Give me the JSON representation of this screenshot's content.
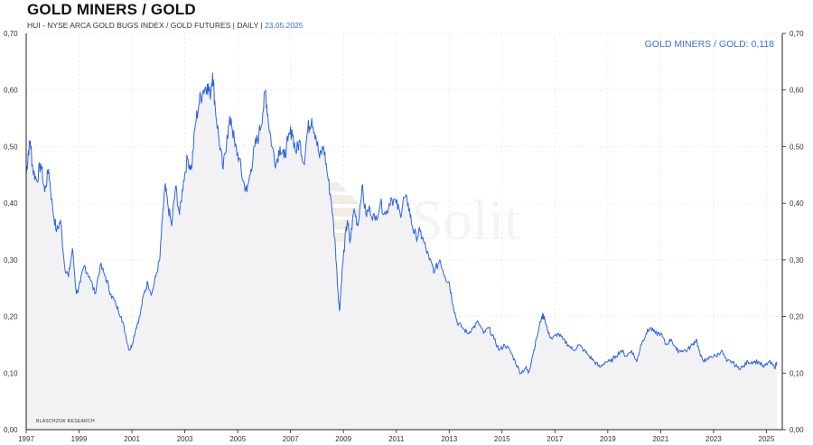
{
  "title": "GOLD MINERS / GOLD",
  "subtitle": "HUI - NYSE ARCA GOLD BUGS INDEX / GOLD FUTURES | DAILY |",
  "subtitle_date": "23.05.2025",
  "watermark": "Solit",
  "source": "BLASCHZOK RESEARCH",
  "colors": {
    "line": "#2e62e0",
    "accent": "#3a6fd8",
    "grid": "#e6e6e6"
  },
  "chart_data": {
    "type": "line",
    "title": "GOLD MINERS / GOLD",
    "readout_label": "GOLD MINERS / GOLD: 0,118",
    "xlim": [
      1997.0,
      2025.6
    ],
    "ylim": [
      0.0,
      0.7
    ],
    "grid": true,
    "x_ticks": [
      1997,
      1999,
      2001,
      2003,
      2005,
      2007,
      2009,
      2011,
      2013,
      2015,
      2017,
      2019,
      2021,
      2023,
      2025
    ],
    "x_tick_labels": [
      "1997",
      "1999",
      "2001",
      "2003",
      "2005",
      "2007",
      "2009",
      "2011",
      "2013",
      "2015",
      "2017",
      "2019",
      "2021",
      "2023",
      "2025"
    ],
    "y_ticks": [
      0.0,
      0.1,
      0.2,
      0.3,
      0.4,
      0.5,
      0.6,
      0.7
    ],
    "y_tick_labels": [
      "0,00",
      "0,10",
      "0,20",
      "0,30",
      "0,40",
      "0,50",
      "0,60",
      "0,70"
    ],
    "series": [
      {
        "values": [
          [
            1997.0,
            0.45
          ],
          [
            1997.08,
            0.49
          ],
          [
            1997.15,
            0.51
          ],
          [
            1997.25,
            0.46
          ],
          [
            1997.4,
            0.44
          ],
          [
            1997.55,
            0.47
          ],
          [
            1997.7,
            0.42
          ],
          [
            1997.85,
            0.46
          ],
          [
            1998.0,
            0.39
          ],
          [
            1998.15,
            0.35
          ],
          [
            1998.3,
            0.37
          ],
          [
            1998.45,
            0.29
          ],
          [
            1998.6,
            0.27
          ],
          [
            1998.75,
            0.32
          ],
          [
            1998.9,
            0.24
          ],
          [
            1999.05,
            0.26
          ],
          [
            1999.2,
            0.29
          ],
          [
            1999.4,
            0.27
          ],
          [
            1999.6,
            0.24
          ],
          [
            1999.8,
            0.29
          ],
          [
            2000.0,
            0.27
          ],
          [
            2000.2,
            0.24
          ],
          [
            2000.4,
            0.22
          ],
          [
            2000.6,
            0.2
          ],
          [
            2000.75,
            0.17
          ],
          [
            2000.9,
            0.14
          ],
          [
            2001.0,
            0.15
          ],
          [
            2001.15,
            0.18
          ],
          [
            2001.3,
            0.2
          ],
          [
            2001.45,
            0.24
          ],
          [
            2001.6,
            0.26
          ],
          [
            2001.75,
            0.24
          ],
          [
            2001.9,
            0.27
          ],
          [
            2002.05,
            0.3
          ],
          [
            2002.15,
            0.37
          ],
          [
            2002.25,
            0.43
          ],
          [
            2002.35,
            0.4
          ],
          [
            2002.5,
            0.36
          ],
          [
            2002.65,
            0.43
          ],
          [
            2002.8,
            0.38
          ],
          [
            2002.95,
            0.44
          ],
          [
            2003.1,
            0.48
          ],
          [
            2003.25,
            0.46
          ],
          [
            2003.4,
            0.54
          ],
          [
            2003.55,
            0.58
          ],
          [
            2003.7,
            0.6
          ],
          [
            2003.85,
            0.61
          ],
          [
            2003.95,
            0.59
          ],
          [
            2004.05,
            0.63
          ],
          [
            2004.15,
            0.57
          ],
          [
            2004.3,
            0.51
          ],
          [
            2004.45,
            0.46
          ],
          [
            2004.6,
            0.52
          ],
          [
            2004.75,
            0.55
          ],
          [
            2004.9,
            0.5
          ],
          [
            2005.05,
            0.48
          ],
          [
            2005.2,
            0.44
          ],
          [
            2005.35,
            0.42
          ],
          [
            2005.5,
            0.46
          ],
          [
            2005.65,
            0.5
          ],
          [
            2005.8,
            0.52
          ],
          [
            2005.95,
            0.56
          ],
          [
            2006.05,
            0.6
          ],
          [
            2006.15,
            0.55
          ],
          [
            2006.3,
            0.5
          ],
          [
            2006.45,
            0.47
          ],
          [
            2006.6,
            0.5
          ],
          [
            2006.75,
            0.48
          ],
          [
            2006.9,
            0.51
          ],
          [
            2007.05,
            0.53
          ],
          [
            2007.2,
            0.49
          ],
          [
            2007.35,
            0.51
          ],
          [
            2007.5,
            0.47
          ],
          [
            2007.65,
            0.53
          ],
          [
            2007.8,
            0.55
          ],
          [
            2007.95,
            0.52
          ],
          [
            2008.1,
            0.48
          ],
          [
            2008.25,
            0.5
          ],
          [
            2008.4,
            0.45
          ],
          [
            2008.55,
            0.4
          ],
          [
            2008.7,
            0.32
          ],
          [
            2008.8,
            0.24
          ],
          [
            2008.85,
            0.21
          ],
          [
            2008.95,
            0.28
          ],
          [
            2009.05,
            0.33
          ],
          [
            2009.15,
            0.37
          ],
          [
            2009.25,
            0.33
          ],
          [
            2009.4,
            0.39
          ],
          [
            2009.55,
            0.36
          ],
          [
            2009.7,
            0.43
          ],
          [
            2009.85,
            0.38
          ],
          [
            2010.0,
            0.39
          ],
          [
            2010.2,
            0.37
          ],
          [
            2010.4,
            0.4
          ],
          [
            2010.6,
            0.38
          ],
          [
            2010.8,
            0.41
          ],
          [
            2011.0,
            0.4
          ],
          [
            2011.15,
            0.38
          ],
          [
            2011.3,
            0.41
          ],
          [
            2011.45,
            0.4
          ],
          [
            2011.6,
            0.36
          ],
          [
            2011.75,
            0.34
          ],
          [
            2011.9,
            0.35
          ],
          [
            2012.05,
            0.33
          ],
          [
            2012.25,
            0.3
          ],
          [
            2012.45,
            0.28
          ],
          [
            2012.65,
            0.3
          ],
          [
            2012.85,
            0.27
          ],
          [
            2013.0,
            0.26
          ],
          [
            2013.15,
            0.22
          ],
          [
            2013.3,
            0.19
          ],
          [
            2013.5,
            0.18
          ],
          [
            2013.7,
            0.17
          ],
          [
            2013.9,
            0.18
          ],
          [
            2014.1,
            0.19
          ],
          [
            2014.3,
            0.17
          ],
          [
            2014.5,
            0.18
          ],
          [
            2014.7,
            0.16
          ],
          [
            2014.9,
            0.14
          ],
          [
            2015.1,
            0.15
          ],
          [
            2015.3,
            0.14
          ],
          [
            2015.5,
            0.12
          ],
          [
            2015.7,
            0.1
          ],
          [
            2015.9,
            0.11
          ],
          [
            2016.0,
            0.1
          ],
          [
            2016.15,
            0.13
          ],
          [
            2016.3,
            0.16
          ],
          [
            2016.5,
            0.2
          ],
          [
            2016.6,
            0.2
          ],
          [
            2016.75,
            0.17
          ],
          [
            2016.9,
            0.16
          ],
          [
            2017.1,
            0.17
          ],
          [
            2017.3,
            0.16
          ],
          [
            2017.5,
            0.15
          ],
          [
            2017.7,
            0.14
          ],
          [
            2017.9,
            0.15
          ],
          [
            2018.1,
            0.14
          ],
          [
            2018.3,
            0.13
          ],
          [
            2018.5,
            0.12
          ],
          [
            2018.7,
            0.11
          ],
          [
            2018.9,
            0.12
          ],
          [
            2019.1,
            0.12
          ],
          [
            2019.3,
            0.13
          ],
          [
            2019.5,
            0.14
          ],
          [
            2019.7,
            0.13
          ],
          [
            2019.9,
            0.14
          ],
          [
            2020.1,
            0.12
          ],
          [
            2020.25,
            0.15
          ],
          [
            2020.45,
            0.17
          ],
          [
            2020.6,
            0.18
          ],
          [
            2020.8,
            0.17
          ],
          [
            2021.0,
            0.17
          ],
          [
            2021.2,
            0.15
          ],
          [
            2021.4,
            0.16
          ],
          [
            2021.6,
            0.14
          ],
          [
            2021.8,
            0.14
          ],
          [
            2022.0,
            0.14
          ],
          [
            2022.2,
            0.15
          ],
          [
            2022.35,
            0.16
          ],
          [
            2022.5,
            0.13
          ],
          [
            2022.7,
            0.12
          ],
          [
            2022.9,
            0.13
          ],
          [
            2023.1,
            0.13
          ],
          [
            2023.3,
            0.14
          ],
          [
            2023.5,
            0.12
          ],
          [
            2023.7,
            0.12
          ],
          [
            2023.9,
            0.11
          ],
          [
            2024.1,
            0.11
          ],
          [
            2024.3,
            0.12
          ],
          [
            2024.5,
            0.12
          ],
          [
            2024.7,
            0.12
          ],
          [
            2024.9,
            0.11
          ],
          [
            2025.1,
            0.12
          ],
          [
            2025.3,
            0.11
          ],
          [
            2025.4,
            0.118
          ]
        ]
      }
    ]
  }
}
